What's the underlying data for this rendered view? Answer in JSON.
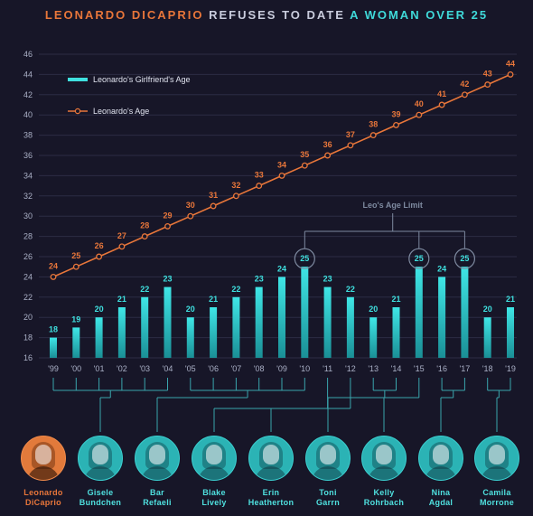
{
  "title": {
    "part1": "LEONARDO DICAPRIO",
    "part2": "REFUSES TO DATE",
    "part3": "A WOMAN OVER 25"
  },
  "colors": {
    "background": "#171628",
    "bar": "#2fd3d4",
    "line": "#e8763a",
    "grid": "#2c2c44",
    "annotation": "#7e8aa0"
  },
  "chart_data": {
    "type": "bar",
    "categories": [
      "'99",
      "'00",
      "'01",
      "'02",
      "'03",
      "'04",
      "'05",
      "'06",
      "'07",
      "'08",
      "'09",
      "'10",
      "'11",
      "'12",
      "'13",
      "'14",
      "'15",
      "'16",
      "'17",
      "'18",
      "'19"
    ],
    "series": [
      {
        "name": "Leonardo's Girlfriend's Age",
        "type": "bar",
        "values": [
          18,
          19,
          20,
          21,
          22,
          23,
          20,
          21,
          22,
          23,
          24,
          25,
          23,
          22,
          20,
          21,
          25,
          24,
          25,
          20,
          21
        ]
      },
      {
        "name": "Leonardo's Age",
        "type": "line",
        "values": [
          24,
          25,
          26,
          27,
          28,
          29,
          30,
          31,
          32,
          33,
          34,
          35,
          36,
          37,
          38,
          39,
          40,
          41,
          42,
          43,
          44
        ]
      }
    ],
    "yticks": [
      16,
      18,
      20,
      22,
      24,
      26,
      28,
      30,
      32,
      34,
      36,
      38,
      40,
      42,
      44,
      46
    ],
    "ylim": [
      16,
      46
    ],
    "legend_position": "top-left",
    "grid": true,
    "annotation": "Leo's Age Limit",
    "highlighted_years": [
      "'10",
      "'15",
      "'17"
    ]
  },
  "people": [
    {
      "name_line1": "Leonardo",
      "name_line2": "DiCaprio"
    },
    {
      "name_line1": "Gisele",
      "name_line2": "Bundchen"
    },
    {
      "name_line1": "Bar",
      "name_line2": "Refaeli"
    },
    {
      "name_line1": "Blake",
      "name_line2": "Lively"
    },
    {
      "name_line1": "Erin",
      "name_line2": "Heatherton"
    },
    {
      "name_line1": "Toni",
      "name_line2": "Garrn"
    },
    {
      "name_line1": "Kelly",
      "name_line2": "Rohrbach"
    },
    {
      "name_line1": "Nina",
      "name_line2": "Agdal"
    },
    {
      "name_line1": "Camila",
      "name_line2": "Morrone"
    }
  ],
  "groups": [
    {
      "person": "Gisele Bundchen",
      "years": [
        "'99",
        "'00",
        "'01",
        "'02",
        "'03",
        "'04"
      ]
    },
    {
      "person": "Bar Refaeli",
      "years": [
        "'05",
        "'06",
        "'07",
        "'08",
        "'09",
        "'10"
      ]
    },
    {
      "person": "Blake Lively",
      "years": [
        "'11"
      ]
    },
    {
      "person": "Erin Heatherton",
      "years": [
        "'12"
      ]
    },
    {
      "person": "Toni Garrn",
      "years": [
        "'13",
        "'14"
      ]
    },
    {
      "person": "Kelly Rohrbach",
      "years": [
        "'15"
      ]
    },
    {
      "person": "Nina Agdal",
      "years": [
        "'16",
        "'17"
      ]
    },
    {
      "person": "Camila Morrone",
      "years": [
        "'18",
        "'19"
      ]
    }
  ]
}
